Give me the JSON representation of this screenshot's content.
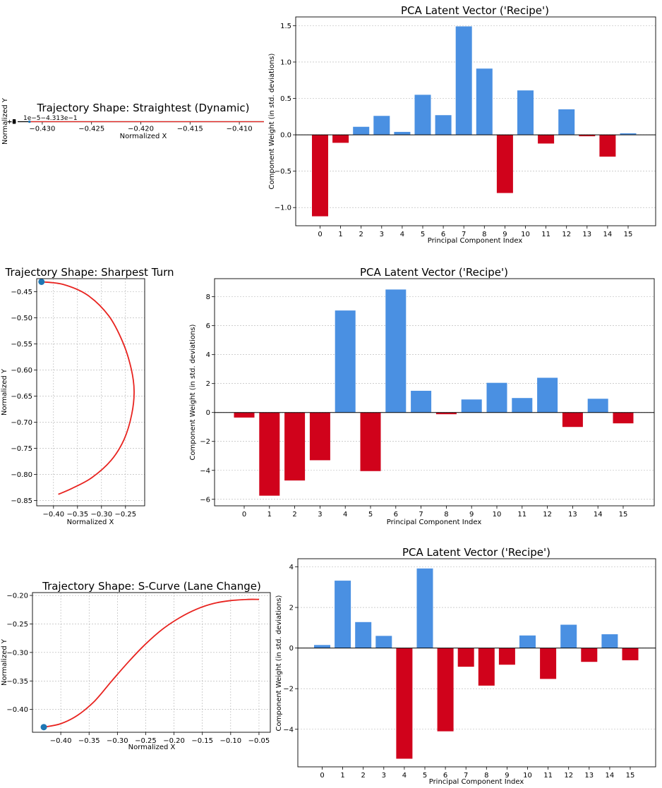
{
  "colors": {
    "positive": "#4a90e2",
    "negative": "#d0021b",
    "trajectory": "#e8231f",
    "start_marker": "#1f77b4",
    "zero_line": "#000000"
  },
  "chart_data": [
    {
      "id": "traj1",
      "type": "line",
      "title": "Trajectory Shape: Straightest (Dynamic)",
      "xlabel": "Normalized X",
      "ylabel": "Normalized Y",
      "x_ticks": [
        "−0.430",
        "−0.425",
        "−0.420",
        "−0.415",
        "−0.410"
      ],
      "y_ticks": [
        "−9",
        "−8",
        "−7",
        "−6",
        "−5",
        "−4",
        "−3",
        "−2",
        "−1",
        "0",
        "+1"
      ],
      "y_offset_text": "1e−5−4.313e−1",
      "xlim": [
        -0.4325,
        -0.4075
      ],
      "series": [
        {
          "name": "trajectory",
          "x": [
            -0.4313,
            -0.43,
            -0.425,
            -0.42,
            -0.415,
            -0.41,
            -0.4075
          ],
          "y": [
            0,
            0,
            0,
            0,
            0,
            0,
            0
          ]
        }
      ],
      "start_point": {
        "x": -0.4313,
        "y": 0
      }
    },
    {
      "id": "pca1",
      "type": "bar",
      "title": "PCA Latent Vector ('Recipe')",
      "xlabel": "Principal Component Index",
      "ylabel": "Component Weight (in std. deviations)",
      "categories": [
        "0",
        "1",
        "2",
        "3",
        "4",
        "5",
        "6",
        "7",
        "8",
        "9",
        "10",
        "11",
        "12",
        "13",
        "14",
        "15"
      ],
      "values": [
        -1.12,
        -0.11,
        0.11,
        0.26,
        0.04,
        0.55,
        0.27,
        1.49,
        0.91,
        -0.8,
        0.61,
        -0.12,
        0.35,
        -0.02,
        -0.3,
        0.02
      ],
      "ylim": [
        -1.25,
        1.62
      ],
      "y_ticks": [
        -1.0,
        -0.5,
        0.0,
        0.5,
        1.0,
        1.5
      ],
      "y_tick_labels": [
        "−1.0",
        "−0.5",
        "0.0",
        "0.5",
        "1.0",
        "1.5"
      ]
    },
    {
      "id": "traj2",
      "type": "line",
      "title": "Trajectory Shape: Sharpest Turn",
      "xlabel": "Normalized X",
      "ylabel": "Normalized Y",
      "xlim": [
        -0.435,
        -0.21
      ],
      "ylim": [
        -0.86,
        -0.425
      ],
      "x_ticks": [
        -0.4,
        -0.35,
        -0.3,
        -0.25
      ],
      "x_tick_labels": [
        "−0.40",
        "−0.35",
        "−0.30",
        "−0.25"
      ],
      "y_ticks": [
        -0.45,
        -0.5,
        -0.55,
        -0.6,
        -0.65,
        -0.7,
        -0.75,
        -0.8,
        -0.85
      ],
      "y_tick_labels": [
        "−0.45",
        "−0.50",
        "−0.55",
        "−0.60",
        "−0.65",
        "−0.70",
        "−0.75",
        "−0.80",
        "−0.85"
      ],
      "series": [
        {
          "name": "trajectory",
          "x": [
            -0.425,
            -0.38,
            -0.33,
            -0.285,
            -0.255,
            -0.238,
            -0.232,
            -0.237,
            -0.253,
            -0.28,
            -0.32,
            -0.36,
            -0.39
          ],
          "y": [
            -0.431,
            -0.436,
            -0.456,
            -0.496,
            -0.548,
            -0.598,
            -0.64,
            -0.685,
            -0.733,
            -0.773,
            -0.806,
            -0.826,
            -0.838
          ]
        }
      ],
      "start_point": {
        "x": -0.425,
        "y": -0.431
      }
    },
    {
      "id": "pca2",
      "type": "bar",
      "title": "PCA Latent Vector ('Recipe')",
      "xlabel": "Principal Component Index",
      "ylabel": "Component Weight (in std. deviations)",
      "categories": [
        "0",
        "1",
        "2",
        "3",
        "4",
        "5",
        "6",
        "7",
        "8",
        "9",
        "10",
        "11",
        "12",
        "13",
        "14",
        "15"
      ],
      "values": [
        -0.35,
        -5.75,
        -4.7,
        -3.3,
        7.05,
        -4.05,
        8.5,
        1.5,
        -0.12,
        0.9,
        2.05,
        1.0,
        2.4,
        -1.0,
        0.95,
        -0.75
      ],
      "ylim": [
        -6.45,
        9.25
      ],
      "y_ticks": [
        -6,
        -4,
        -2,
        0,
        2,
        4,
        6,
        8
      ],
      "y_tick_labels": [
        "−6",
        "−4",
        "−2",
        "0",
        "2",
        "4",
        "6",
        "8"
      ]
    },
    {
      "id": "traj3",
      "type": "line",
      "title": "Trajectory Shape: S-Curve (Lane Change)",
      "xlabel": "Normalized X",
      "ylabel": "Normalized Y",
      "xlim": [
        -0.45,
        -0.03
      ],
      "ylim": [
        -0.44,
        -0.195
      ],
      "x_ticks": [
        -0.4,
        -0.35,
        -0.3,
        -0.25,
        -0.2,
        -0.15,
        -0.1,
        -0.05
      ],
      "x_tick_labels": [
        "−0.40",
        "−0.35",
        "−0.30",
        "−0.25",
        "−0.20",
        "−0.15",
        "−0.10",
        "−0.05"
      ],
      "y_ticks": [
        -0.2,
        -0.25,
        -0.3,
        -0.35,
        -0.4
      ],
      "y_tick_labels": [
        "−0.20",
        "−0.25",
        "−0.30",
        "−0.35",
        "−0.40"
      ],
      "series": [
        {
          "name": "trajectory",
          "x": [
            -0.43,
            -0.4,
            -0.37,
            -0.34,
            -0.31,
            -0.28,
            -0.25,
            -0.22,
            -0.19,
            -0.16,
            -0.13,
            -0.1,
            -0.07,
            -0.05
          ],
          "y": [
            -0.431,
            -0.425,
            -0.41,
            -0.385,
            -0.35,
            -0.316,
            -0.285,
            -0.259,
            -0.239,
            -0.224,
            -0.214,
            -0.209,
            -0.207,
            -0.207
          ]
        }
      ],
      "start_point": {
        "x": -0.43,
        "y": -0.431
      }
    },
    {
      "id": "pca3",
      "type": "bar",
      "title": "PCA Latent Vector ('Recipe')",
      "xlabel": "Principal Component Index",
      "ylabel": "Component Weight (in std. deviations)",
      "categories": [
        "0",
        "1",
        "2",
        "3",
        "4",
        "5",
        "6",
        "7",
        "8",
        "9",
        "10",
        "11",
        "12",
        "13",
        "14",
        "15"
      ],
      "values": [
        0.15,
        3.32,
        1.28,
        0.6,
        -5.45,
        3.92,
        -4.1,
        -0.92,
        -1.85,
        -0.82,
        0.62,
        -1.52,
        1.15,
        -0.68,
        0.68,
        -0.6
      ],
      "ylim": [
        -5.85,
        4.4
      ],
      "y_ticks": [
        -4,
        -2,
        0,
        2,
        4
      ],
      "y_tick_labels": [
        "−4",
        "−2",
        "0",
        "2",
        "4"
      ]
    }
  ]
}
